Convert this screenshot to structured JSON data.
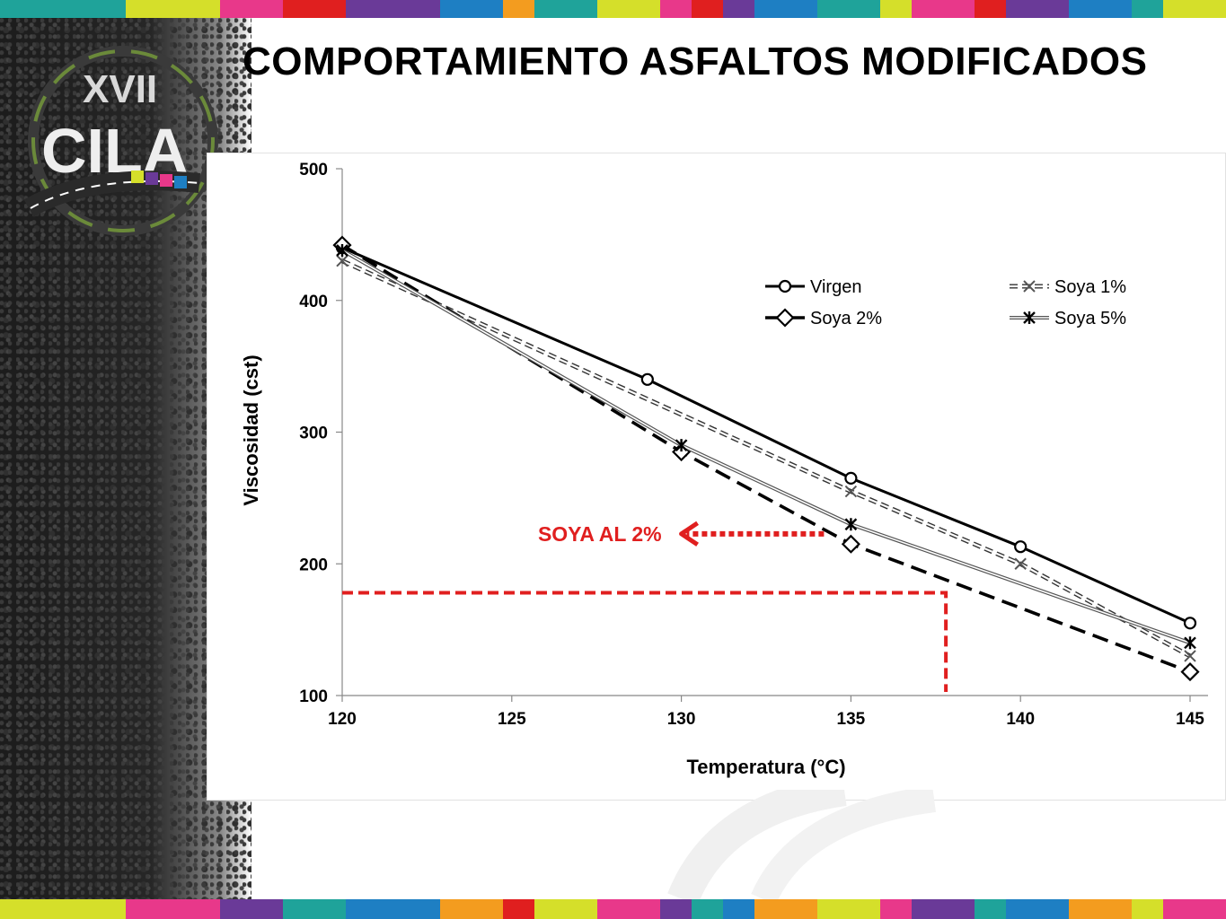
{
  "slide": {
    "title": "COMPORTAMIENTO ASFALTOS  MODIFICADOS",
    "logo_text": "XVII CILA",
    "stripe_colors": [
      "#1fa39a",
      "#d5df2a",
      "#e8388a",
      "#6a3a98",
      "#1e7fc3",
      "#f39c1f",
      "#e01f1f"
    ]
  },
  "chart_data": {
    "type": "line",
    "title": "",
    "xlabel": "Temperatura (°C)",
    "ylabel": "Viscosidad (cst)",
    "xlim": [
      120,
      145
    ],
    "ylim": [
      100,
      500
    ],
    "x_ticks": [
      "120",
      "125",
      "130",
      "135",
      "140",
      "145"
    ],
    "y_ticks": [
      "100",
      "200",
      "300",
      "400",
      "500"
    ],
    "grid": false,
    "legend_position": "upper-right",
    "series": [
      {
        "name": "Virgen",
        "x": [
          120,
          129,
          135,
          140,
          145
        ],
        "y": [
          440,
          340,
          265,
          213,
          155
        ],
        "color": "#000000",
        "marker": "circle",
        "style": "solid"
      },
      {
        "name": "Soya 1%",
        "x": [
          120,
          135,
          140,
          145
        ],
        "y": [
          430,
          255,
          200,
          130
        ],
        "color": "#555555",
        "marker": "x",
        "style": "double-dashed"
      },
      {
        "name": "Soya 2%",
        "x": [
          120,
          130,
          135,
          145
        ],
        "y": [
          442,
          285,
          215,
          118
        ],
        "color": "#000000",
        "marker": "diamond",
        "style": "dashed"
      },
      {
        "name": "Soya 5%",
        "x": [
          120,
          130,
          135,
          145
        ],
        "y": [
          438,
          290,
          230,
          140
        ],
        "color": "#555555",
        "marker": "star",
        "style": "double"
      }
    ],
    "annotations": [
      {
        "text": "SOYA  AL 2%",
        "color": "#e01f1f",
        "arrow_from": [
          135,
          218
        ],
        "arrow_to": [
          130,
          218
        ]
      },
      {
        "label": "reference-line",
        "color": "#e01f1f",
        "x": 137.8,
        "y": 178
      }
    ]
  }
}
